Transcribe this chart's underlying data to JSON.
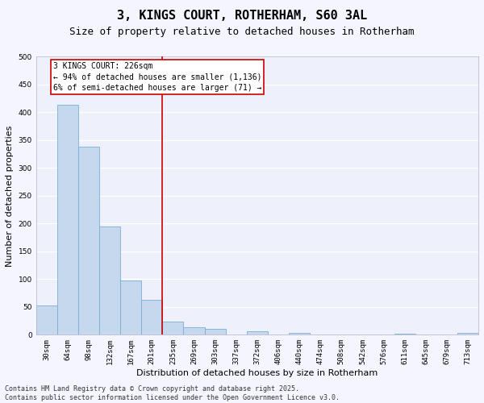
{
  "title": "3, KINGS COURT, ROTHERHAM, S60 3AL",
  "subtitle": "Size of property relative to detached houses in Rotherham",
  "xlabel": "Distribution of detached houses by size in Rotherham",
  "ylabel": "Number of detached properties",
  "categories": [
    "30sqm",
    "64sqm",
    "98sqm",
    "132sqm",
    "167sqm",
    "201sqm",
    "235sqm",
    "269sqm",
    "303sqm",
    "337sqm",
    "372sqm",
    "406sqm",
    "440sqm",
    "474sqm",
    "508sqm",
    "542sqm",
    "576sqm",
    "611sqm",
    "645sqm",
    "679sqm",
    "713sqm"
  ],
  "values": [
    53,
    413,
    338,
    195,
    97,
    63,
    24,
    13,
    10,
    0,
    6,
    0,
    3,
    0,
    0,
    0,
    0,
    2,
    0,
    0,
    3
  ],
  "bar_color": "#c5d8ee",
  "bar_edge_color": "#7aafd4",
  "annotation_text": "3 KINGS COURT: 226sqm\n← 94% of detached houses are smaller (1,136)\n6% of semi-detached houses are larger (71) →",
  "vline_x": 5.5,
  "vline_color": "#cc0000",
  "annotation_box_color": "#cc0000",
  "ylim": [
    0,
    500
  ],
  "yticks": [
    0,
    50,
    100,
    150,
    200,
    250,
    300,
    350,
    400,
    450,
    500
  ],
  "plot_bg_color": "#eef1fb",
  "grid_color": "#ffffff",
  "fig_bg_color": "#f5f5ff",
  "footer_line1": "Contains HM Land Registry data © Crown copyright and database right 2025.",
  "footer_line2": "Contains public sector information licensed under the Open Government Licence v3.0.",
  "title_fontsize": 11,
  "subtitle_fontsize": 9,
  "tick_fontsize": 6.5,
  "ylabel_fontsize": 8,
  "xlabel_fontsize": 8,
  "footer_fontsize": 6,
  "annotation_fontsize": 7
}
